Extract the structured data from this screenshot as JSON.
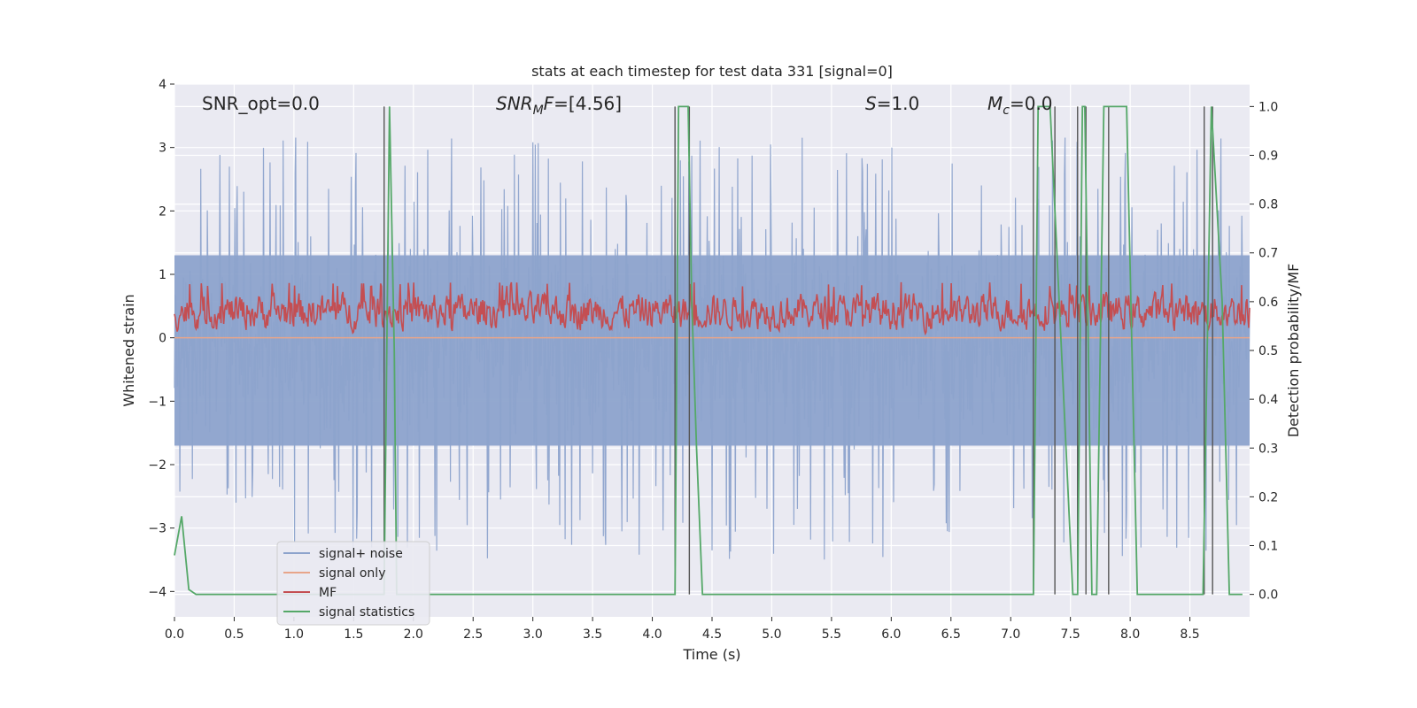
{
  "chart_data": {
    "type": "line",
    "title": "stats at each timestep for test data 331 [signal=0]",
    "xlabel": "Time (s)",
    "ylabel": "Whitened strain",
    "y2label": "Detection probability/MF",
    "xlim": [
      0.0,
      9.0
    ],
    "ylim": [
      -4.4,
      4.0
    ],
    "y2lim": [
      -0.046,
      1.046
    ],
    "grid": true,
    "legend_position": "lower-left",
    "x_ticks": [
      "0.0",
      "0.5",
      "1.0",
      "1.5",
      "2.0",
      "2.5",
      "3.0",
      "3.5",
      "4.0",
      "4.5",
      "5.0",
      "5.5",
      "6.0",
      "6.5",
      "7.0",
      "7.5",
      "8.0",
      "8.5"
    ],
    "y_ticks": [
      "4",
      "3",
      "2",
      "1",
      "0",
      "−1",
      "−2",
      "−3",
      "−4"
    ],
    "y2_ticks": [
      "1.0",
      "0.9",
      "0.8",
      "0.7",
      "0.6",
      "0.5",
      "0.4",
      "0.3",
      "0.2",
      "0.1",
      "0.0"
    ],
    "annotations": [
      {
        "text_parts": [
          {
            "t": "SNR_opt=0.0",
            "i": false
          }
        ]
      },
      {
        "text_parts": [
          {
            "t": "SNR",
            "i": true
          },
          {
            "t": "M",
            "i": true,
            "sub": true
          },
          {
            "t": "F",
            "i": true
          },
          {
            "t": "=[4.56]",
            "i": false
          }
        ]
      },
      {
        "text_parts": [
          {
            "t": "S",
            "i": true
          },
          {
            "t": "=1.0",
            "i": false
          }
        ]
      },
      {
        "text_parts": [
          {
            "t": "M",
            "i": true
          },
          {
            "t": "c",
            "i": true,
            "sub": true
          },
          {
            "t": "=0.0",
            "i": false
          }
        ]
      }
    ],
    "series": [
      {
        "name": "signal+ noise",
        "color": "#8da3cc",
        "kind": "noise",
        "band": [
          -1.7,
          1.3
        ],
        "peak_range": [
          -3.5,
          3.2
        ]
      },
      {
        "name": "signal only",
        "color": "#e8a58a",
        "kind": "flat",
        "value": 0.0
      },
      {
        "name": "MF",
        "color": "#c44e52",
        "kind": "mf",
        "axis": "right",
        "range": [
          0.53,
          0.63
        ]
      },
      {
        "name": "signal statistics",
        "color": "#55a868",
        "kind": "steps",
        "axis": "right",
        "x": [
          0.0,
          0.06,
          0.12,
          0.18,
          1.745,
          1.755,
          1.8,
          1.84,
          1.86,
          4.19,
          4.22,
          4.3,
          4.33,
          4.37,
          4.42,
          7.19,
          7.23,
          7.33,
          7.52,
          7.56,
          7.6,
          7.62,
          7.68,
          7.72,
          7.78,
          7.82,
          7.86,
          7.97,
          8.06,
          8.61,
          8.68,
          8.77,
          8.83,
          8.94
        ],
        "y": [
          0.08,
          0.16,
          0.01,
          0.0,
          0.0,
          0.0,
          1.0,
          0.5,
          0.0,
          0.0,
          1.0,
          1.0,
          0.6,
          0.3,
          0.0,
          0.0,
          1.0,
          1.0,
          0.0,
          0.0,
          1.0,
          1.0,
          0.0,
          0.0,
          1.0,
          1.0,
          1.0,
          1.0,
          0.0,
          0.0,
          1.0,
          0.6,
          0.0,
          0.0
        ]
      }
    ],
    "vertical_markers": [
      1.755,
      4.19,
      4.31,
      7.19,
      7.37,
      7.56,
      7.63,
      7.82,
      8.62,
      8.69
    ],
    "legend": [
      "signal+ noise",
      "signal only",
      "MF",
      "signal statistics"
    ]
  }
}
